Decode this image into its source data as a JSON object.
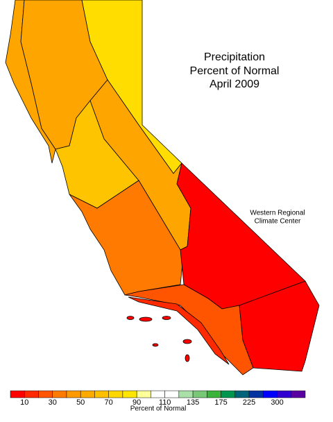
{
  "title": [
    "Precipitation",
    "Percent of Normal",
    "April 2009"
  ],
  "credit": [
    "Western Regional",
    "Climate Center"
  ],
  "legend": {
    "colors": [
      "#ff0000",
      "#ff2a00",
      "#ff5500",
      "#ff7a00",
      "#ff9900",
      "#ffaa00",
      "#ffc000",
      "#ffd700",
      "#ffe600",
      "#ffff99",
      "#ffffff",
      "#ffffff",
      "#a8e0a8",
      "#78c878",
      "#3cb43c",
      "#009650",
      "#006478",
      "#0032a0",
      "#0000ff",
      "#3000d0",
      "#5a00a0"
    ],
    "ticks": [
      10,
      30,
      50,
      70,
      90,
      110,
      135,
      175,
      225,
      300
    ],
    "label": "Percent of Normal"
  }
}
